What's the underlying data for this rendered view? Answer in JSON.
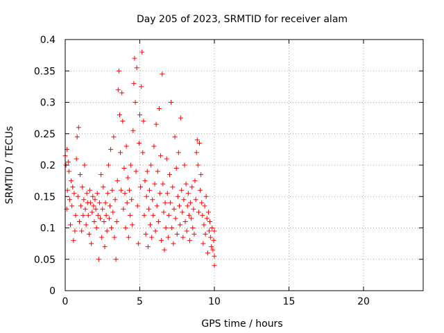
{
  "chart_data": {
    "type": "scatter",
    "title": "Day 205 of 2023, SRMTID for receiver alam",
    "xlabel": "GPS time / hours",
    "ylabel": "SRMTID / TECUs",
    "xlim": [
      0,
      24
    ],
    "ylim": [
      0,
      0.4
    ],
    "xticks": [
      0,
      5,
      10,
      15,
      20
    ],
    "yticks": [
      0,
      0.05,
      0.1,
      0.15,
      0.2,
      0.25,
      0.3,
      0.35,
      0.4
    ],
    "ytick_labels": [
      "0",
      "0.05",
      "0.1",
      "0.15",
      "0.2",
      "0.25",
      "0.3",
      "0.35",
      "0.4"
    ],
    "grid": true,
    "marker": "+",
    "color": "#ff0000",
    "series": [
      {
        "values": [
          [
            0.0,
            0.215
          ],
          [
            0.05,
            0.2
          ],
          [
            0.1,
            0.13
          ],
          [
            0.12,
            0.225
          ],
          [
            0.15,
            0.16
          ],
          [
            0.2,
            0.205
          ],
          [
            0.25,
            0.19
          ],
          [
            0.3,
            0.145
          ],
          [
            0.35,
            0.105
          ],
          [
            0.4,
            0.175
          ],
          [
            0.45,
            0.135
          ],
          [
            0.5,
            0.165
          ],
          [
            0.55,
            0.08
          ],
          [
            0.6,
            0.155
          ],
          [
            0.65,
            0.095
          ],
          [
            0.7,
            0.12
          ],
          [
            0.75,
            0.21
          ],
          [
            0.8,
            0.245
          ],
          [
            0.85,
            0.15
          ],
          [
            0.9,
            0.26
          ],
          [
            0.95,
            0.11
          ],
          [
            1.0,
            0.185
          ],
          [
            1.05,
            0.135
          ],
          [
            1.1,
            0.095
          ],
          [
            1.15,
            0.165
          ],
          [
            1.2,
            0.12
          ],
          [
            1.25,
            0.145
          ],
          [
            1.3,
            0.2
          ],
          [
            1.35,
            0.13
          ],
          [
            1.4,
            0.105
          ],
          [
            1.45,
            0.155
          ],
          [
            1.5,
            0.14
          ],
          [
            1.55,
            0.12
          ],
          [
            1.6,
            0.09
          ],
          [
            1.65,
            0.16
          ],
          [
            1.7,
            0.14
          ],
          [
            1.75,
            0.075
          ],
          [
            1.8,
            0.125
          ],
          [
            1.85,
            0.15
          ],
          [
            1.9,
            0.135
          ],
          [
            1.95,
            0.11
          ],
          [
            2.0,
            0.145
          ],
          [
            2.05,
            0.13
          ],
          [
            2.1,
            0.1
          ],
          [
            2.15,
            0.155
          ],
          [
            2.2,
            0.12
          ],
          [
            2.25,
            0.05
          ],
          [
            2.3,
            0.14
          ],
          [
            2.35,
            0.115
          ],
          [
            2.4,
            0.185
          ],
          [
            2.45,
            0.085
          ],
          [
            2.5,
            0.13
          ],
          [
            2.55,
            0.165
          ],
          [
            2.6,
            0.11
          ],
          [
            2.65,
            0.07
          ],
          [
            2.7,
            0.14
          ],
          [
            2.75,
            0.12
          ],
          [
            2.8,
            0.095
          ],
          [
            2.85,
            0.155
          ],
          [
            2.9,
            0.2
          ],
          [
            2.95,
            0.115
          ],
          [
            3.0,
            0.135
          ],
          [
            3.05,
            0.225
          ],
          [
            3.1,
            0.1
          ],
          [
            3.15,
            0.16
          ],
          [
            3.2,
            0.125
          ],
          [
            3.25,
            0.245
          ],
          [
            3.3,
            0.085
          ],
          [
            3.35,
            0.145
          ],
          [
            3.4,
            0.05
          ],
          [
            3.45,
            0.11
          ],
          [
            3.5,
            0.175
          ],
          [
            3.55,
            0.32
          ],
          [
            3.6,
            0.35
          ],
          [
            3.65,
            0.28
          ],
          [
            3.7,
            0.22
          ],
          [
            3.75,
            0.16
          ],
          [
            3.8,
            0.315
          ],
          [
            3.85,
            0.27
          ],
          [
            3.9,
            0.13
          ],
          [
            3.95,
            0.195
          ],
          [
            4.0,
            0.155
          ],
          [
            4.05,
            0.1
          ],
          [
            4.1,
            0.23
          ],
          [
            4.15,
            0.14
          ],
          [
            4.2,
            0.18
          ],
          [
            4.25,
            0.085
          ],
          [
            4.3,
            0.16
          ],
          [
            4.35,
            0.12
          ],
          [
            4.4,
            0.2
          ],
          [
            4.45,
            0.145
          ],
          [
            4.5,
            0.105
          ],
          [
            4.55,
            0.255
          ],
          [
            4.6,
            0.33
          ],
          [
            4.65,
            0.37
          ],
          [
            4.7,
            0.3
          ],
          [
            4.75,
            0.19
          ],
          [
            4.8,
            0.355
          ],
          [
            4.85,
            0.135
          ],
          [
            4.9,
            0.075
          ],
          [
            4.95,
            0.235
          ],
          [
            5.0,
            0.28
          ],
          [
            5.05,
            0.165
          ],
          [
            5.1,
            0.325
          ],
          [
            5.15,
            0.38
          ],
          [
            5.2,
            0.22
          ],
          [
            5.25,
            0.27
          ],
          [
            5.3,
            0.12
          ],
          [
            5.35,
            0.175
          ],
          [
            5.4,
            0.09
          ],
          [
            5.45,
            0.15
          ],
          [
            5.5,
            0.19
          ],
          [
            5.55,
            0.07
          ],
          [
            5.6,
            0.13
          ],
          [
            5.65,
            0.16
          ],
          [
            5.7,
            0.105
          ],
          [
            5.75,
            0.2
          ],
          [
            5.8,
            0.085
          ],
          [
            5.85,
            0.145
          ],
          [
            5.9,
            0.12
          ],
          [
            5.95,
            0.23
          ],
          [
            6.0,
            0.17
          ],
          [
            6.05,
            0.095
          ],
          [
            6.1,
            0.265
          ],
          [
            6.15,
            0.135
          ],
          [
            6.2,
            0.19
          ],
          [
            6.25,
            0.11
          ],
          [
            6.3,
            0.29
          ],
          [
            6.35,
            0.155
          ],
          [
            6.4,
            0.215
          ],
          [
            6.45,
            0.08
          ],
          [
            6.5,
            0.345
          ],
          [
            6.55,
            0.17
          ],
          [
            6.6,
            0.125
          ],
          [
            6.65,
            0.065
          ],
          [
            6.7,
            0.14
          ],
          [
            6.75,
            0.1
          ],
          [
            6.8,
            0.21
          ],
          [
            6.85,
            0.155
          ],
          [
            6.9,
            0.085
          ],
          [
            6.95,
            0.12
          ],
          [
            7.0,
            0.185
          ],
          [
            7.05,
            0.14
          ],
          [
            7.1,
            0.3
          ],
          [
            7.15,
            0.1
          ],
          [
            7.2,
            0.165
          ],
          [
            7.25,
            0.075
          ],
          [
            7.3,
            0.13
          ],
          [
            7.35,
            0.245
          ],
          [
            7.4,
            0.115
          ],
          [
            7.45,
            0.195
          ],
          [
            7.5,
            0.09
          ],
          [
            7.55,
            0.15
          ],
          [
            7.6,
            0.22
          ],
          [
            7.65,
            0.135
          ],
          [
            7.7,
            0.105
          ],
          [
            7.75,
            0.275
          ],
          [
            7.8,
            0.16
          ],
          [
            7.85,
            0.125
          ],
          [
            7.9,
            0.085
          ],
          [
            7.95,
            0.145
          ],
          [
            8.0,
            0.2
          ],
          [
            8.05,
            0.11
          ],
          [
            8.1,
            0.17
          ],
          [
            8.15,
            0.095
          ],
          [
            8.2,
            0.135
          ],
          [
            8.25,
            0.155
          ],
          [
            8.3,
            0.12
          ],
          [
            8.35,
            0.08
          ],
          [
            8.4,
            0.14
          ],
          [
            8.45,
            0.115
          ],
          [
            8.5,
            0.165
          ],
          [
            8.55,
            0.1
          ],
          [
            8.6,
            0.13
          ],
          [
            8.65,
            0.09
          ],
          [
            8.7,
            0.175
          ],
          [
            8.75,
            0.145
          ],
          [
            8.8,
            0.22
          ],
          [
            8.85,
            0.24
          ],
          [
            8.9,
            0.2
          ],
          [
            8.95,
            0.125
          ],
          [
            9.0,
            0.235
          ],
          [
            9.05,
            0.16
          ],
          [
            9.1,
            0.185
          ],
          [
            9.15,
            0.14
          ],
          [
            9.2,
            0.12
          ],
          [
            9.25,
            0.075
          ],
          [
            9.3,
            0.105
          ],
          [
            9.35,
            0.135
          ],
          [
            9.4,
            0.09
          ],
          [
            9.45,
            0.15
          ],
          [
            9.5,
            0.115
          ],
          [
            9.55,
            0.06
          ],
          [
            9.6,
            0.125
          ],
          [
            9.65,
            0.095
          ],
          [
            9.7,
            0.11
          ],
          [
            9.75,
            0.085
          ],
          [
            9.8,
            0.07
          ],
          [
            9.85,
            0.1
          ],
          [
            9.9,
            0.065
          ],
          [
            9.95,
            0.08
          ],
          [
            10.0,
            0.04
          ],
          [
            10.0,
            0.055
          ],
          [
            10.0,
            0.095
          ]
        ]
      }
    ]
  }
}
